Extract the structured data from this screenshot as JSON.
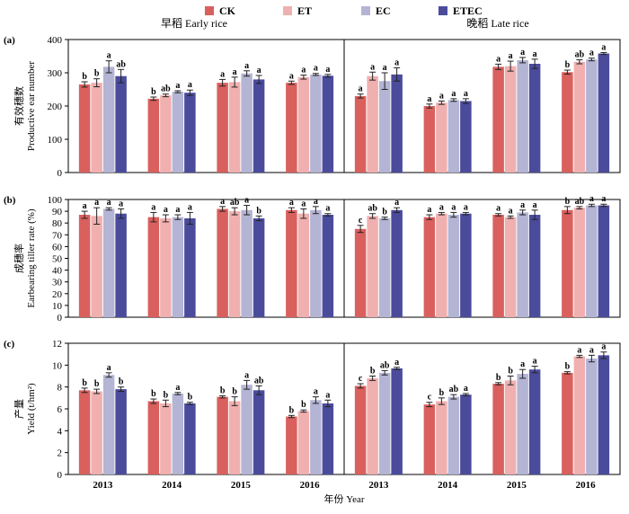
{
  "legend": {
    "items": [
      {
        "label": "CK",
        "color": "#d9605d"
      },
      {
        "label": "ET",
        "color": "#f0b0b0"
      },
      {
        "label": "EC",
        "color": "#b4b4d4"
      },
      {
        "label": "ETEC",
        "color": "#4b4b9c"
      }
    ]
  },
  "season_titles": [
    "早稻 Early rice",
    "晚稻 Late rice"
  ],
  "x_title": "年份 Year",
  "years": [
    "2013",
    "2014",
    "2015",
    "2016",
    "2013",
    "2014",
    "2015",
    "2016"
  ],
  "chart_data": [
    {
      "type": "bar",
      "panel": "(a)",
      "ylabel_cn": "有效穗数",
      "ylabel_en": "Productive ear number",
      "ylim": [
        0,
        400
      ],
      "yticks": [
        "0",
        "100",
        "200",
        "300",
        "400"
      ],
      "categories": [
        "2013",
        "2014",
        "2015",
        "2016",
        "2013",
        "2014",
        "2015",
        "2016"
      ],
      "series": [
        {
          "name": "CK",
          "values": [
            265,
            222,
            270,
            270,
            230,
            200,
            318,
            302
          ],
          "errors": [
            8,
            5,
            10,
            5,
            6,
            6,
            8,
            6
          ],
          "labels": [
            "b",
            "b",
            "a",
            "a",
            "a",
            "a",
            "a",
            "b"
          ]
        },
        {
          "name": "ET",
          "values": [
            270,
            232,
            272,
            287,
            290,
            210,
            320,
            333
          ],
          "errors": [
            12,
            4,
            15,
            6,
            12,
            5,
            15,
            6
          ],
          "labels": [
            "b",
            "ab",
            "a",
            "a",
            "a",
            "a",
            "a",
            "ab"
          ]
        },
        {
          "name": "EC",
          "values": [
            318,
            243,
            298,
            295,
            275,
            218,
            338,
            340
          ],
          "errors": [
            18,
            3,
            8,
            3,
            25,
            4,
            8,
            4
          ],
          "labels": [
            "a",
            "a",
            "a",
            "a",
            "a",
            "a",
            "a",
            "a"
          ]
        },
        {
          "name": "ETEC",
          "values": [
            290,
            240,
            280,
            291,
            295,
            215,
            327,
            358
          ],
          "errors": [
            20,
            8,
            12,
            4,
            20,
            7,
            14,
            3
          ],
          "labels": [
            "ab",
            "a",
            "a",
            "a",
            "a",
            "a",
            "a",
            "a"
          ]
        }
      ]
    },
    {
      "type": "bar",
      "panel": "(b)",
      "ylabel_cn": "成穗率",
      "ylabel_en": "Earbearing tiller rate (%)",
      "ylim": [
        0,
        100
      ],
      "yticks": [
        "0",
        "10",
        "20",
        "30",
        "40",
        "50",
        "60",
        "70",
        "80",
        "90",
        "100"
      ],
      "categories": [
        "2013",
        "2014",
        "2015",
        "2016",
        "2013",
        "2014",
        "2015",
        "2016"
      ],
      "series": [
        {
          "name": "CK",
          "values": [
            87,
            85,
            92,
            91,
            75,
            85,
            87,
            91
          ],
          "errors": [
            3,
            4,
            2,
            2,
            3,
            2,
            1,
            3
          ],
          "labels": [
            "a",
            "a",
            "a",
            "a",
            "c",
            "a",
            "a",
            "b"
          ]
        },
        {
          "name": "ET",
          "values": [
            86,
            84,
            90,
            88,
            86,
            88,
            85,
            93
          ],
          "errors": [
            7,
            3,
            3,
            4,
            2,
            1,
            1,
            1
          ],
          "labels": [
            "a",
            "a",
            "ab",
            "a",
            "ab",
            "a",
            "a",
            "ab"
          ]
        },
        {
          "name": "EC",
          "values": [
            92,
            85,
            91,
            91,
            84,
            87,
            89,
            95
          ],
          "errors": [
            1,
            2,
            4,
            3,
            1,
            2,
            2,
            1
          ],
          "labels": [
            "a",
            "a",
            "a",
            "a",
            "b",
            "a",
            "a",
            "a"
          ]
        },
        {
          "name": "ETEC",
          "values": [
            88,
            84,
            84,
            87,
            91,
            88,
            87,
            95
          ],
          "errors": [
            4,
            5,
            2,
            1,
            2,
            1,
            4,
            1
          ],
          "labels": [
            "a",
            "a",
            "b",
            "a",
            "a",
            "a",
            "a",
            "a"
          ]
        }
      ]
    },
    {
      "type": "bar",
      "panel": "(c)",
      "ylabel_cn": "产量",
      "ylabel_en": "Yield (t/hm²)",
      "ylim": [
        0,
        12
      ],
      "yticks": [
        "0",
        "2",
        "4",
        "6",
        "8",
        "10",
        "12"
      ],
      "categories": [
        "2013",
        "2014",
        "2015",
        "2016",
        "2013",
        "2014",
        "2015",
        "2016"
      ],
      "series": [
        {
          "name": "CK",
          "values": [
            7.7,
            6.7,
            7.1,
            5.3,
            8.1,
            6.4,
            8.3,
            9.3
          ],
          "errors": [
            0.2,
            0.2,
            0.1,
            0.1,
            0.2,
            0.2,
            0.1,
            0.1
          ],
          "labels": [
            "b",
            "b",
            "b",
            "b",
            "c",
            "c",
            "b",
            "b"
          ]
        },
        {
          "name": "ET",
          "values": [
            7.6,
            6.5,
            6.7,
            5.8,
            8.8,
            6.7,
            8.6,
            10.8
          ],
          "errors": [
            0.2,
            0.3,
            0.4,
            0.1,
            0.2,
            0.3,
            0.4,
            0.1
          ],
          "labels": [
            "b",
            "b",
            "b",
            "b",
            "b",
            "b",
            "b",
            "a"
          ]
        },
        {
          "name": "EC",
          "values": [
            9.1,
            7.4,
            8.2,
            6.8,
            9.3,
            7.1,
            9.2,
            10.6
          ],
          "errors": [
            0.2,
            0.1,
            0.4,
            0.3,
            0.2,
            0.2,
            0.4,
            0.3
          ],
          "labels": [
            "a",
            "a",
            "a",
            "a",
            "ab",
            "ab",
            "a",
            "a"
          ]
        },
        {
          "name": "ETEC",
          "values": [
            7.8,
            6.5,
            7.7,
            6.5,
            9.7,
            7.3,
            9.6,
            10.9
          ],
          "errors": [
            0.2,
            0.1,
            0.4,
            0.3,
            0.1,
            0.1,
            0.3,
            0.3
          ],
          "labels": [
            "b",
            "b",
            "ab",
            "a",
            "a",
            "a",
            "a",
            "a"
          ]
        }
      ]
    }
  ]
}
